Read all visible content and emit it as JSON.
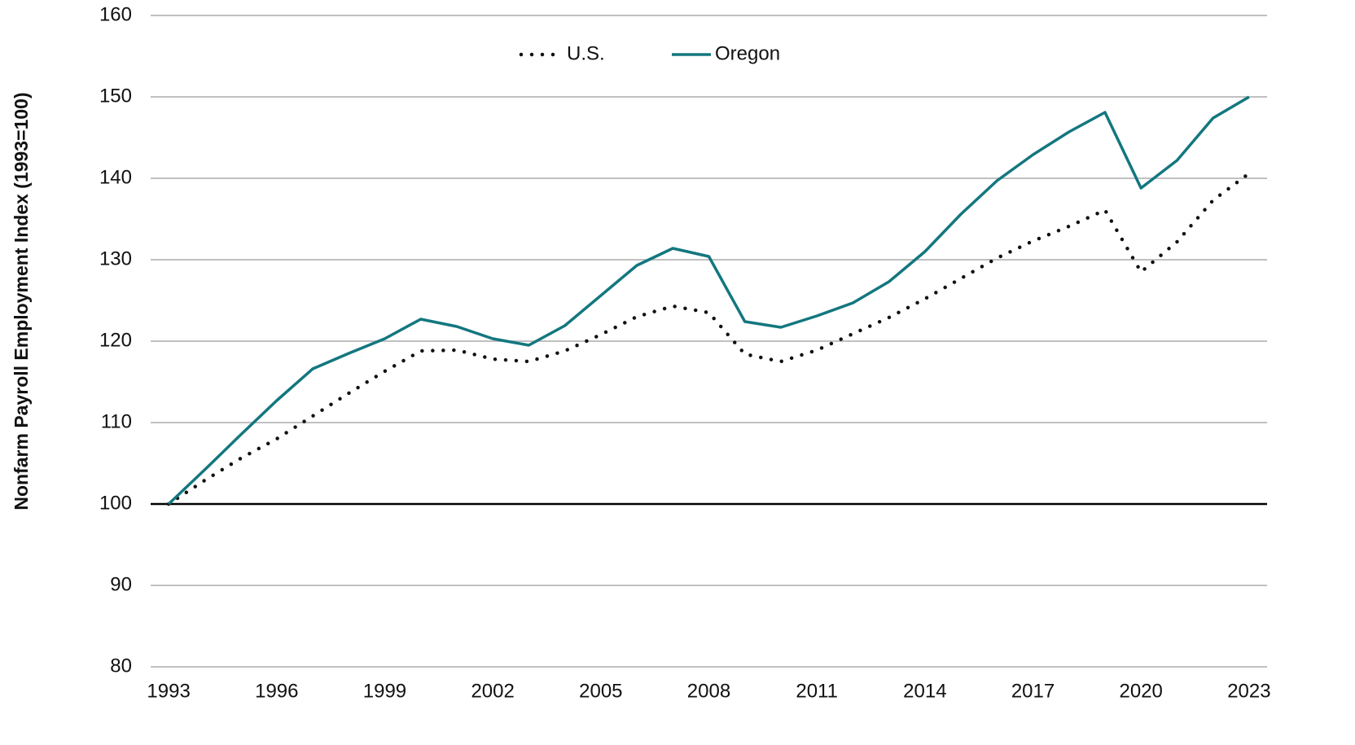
{
  "chart_data": {
    "type": "line",
    "y_axis_label": "Nonfarm Payroll Employment Index (1993=100)",
    "x": [
      1993,
      1994,
      1995,
      1996,
      1997,
      1998,
      1999,
      2000,
      2001,
      2002,
      2003,
      2004,
      2005,
      2006,
      2007,
      2008,
      2009,
      2010,
      2011,
      2012,
      2013,
      2014,
      2015,
      2016,
      2017,
      2018,
      2019,
      2020,
      2021,
      2022,
      2023
    ],
    "series": [
      {
        "name": "U.S.",
        "color": "#111111",
        "style": "dotted",
        "values": [
          100,
          102.9,
          105.6,
          108.0,
          110.8,
          113.6,
          116.3,
          118.8,
          118.9,
          117.8,
          117.5,
          118.8,
          120.8,
          123.0,
          124.3,
          123.5,
          118.4,
          117.5,
          118.9,
          120.9,
          122.9,
          125.2,
          127.7,
          130.2,
          132.3,
          134.1,
          136.1,
          128.5,
          132.2,
          137.3,
          140.6
        ]
      },
      {
        "name": "Oregon",
        "color": "#13777f",
        "style": "solid",
        "values": [
          100,
          104.2,
          108.5,
          112.7,
          116.6,
          118.5,
          120.3,
          122.7,
          121.8,
          120.3,
          119.5,
          121.9,
          125.6,
          129.3,
          131.4,
          130.4,
          122.4,
          121.7,
          123.1,
          124.7,
          127.3,
          131.0,
          135.6,
          139.7,
          142.9,
          145.7,
          148.1,
          138.8,
          142.2,
          147.4,
          150.0
        ]
      }
    ],
    "xlim": [
      1992.5,
      2023.5
    ],
    "xticks": [
      1993,
      1996,
      1999,
      2002,
      2005,
      2008,
      2011,
      2014,
      2017,
      2020,
      2023
    ],
    "ylim": [
      80,
      160
    ],
    "yticks": [
      80,
      90,
      100,
      110,
      120,
      130,
      140,
      150,
      160
    ],
    "grid": true,
    "baseline": 100,
    "legend": "top"
  }
}
